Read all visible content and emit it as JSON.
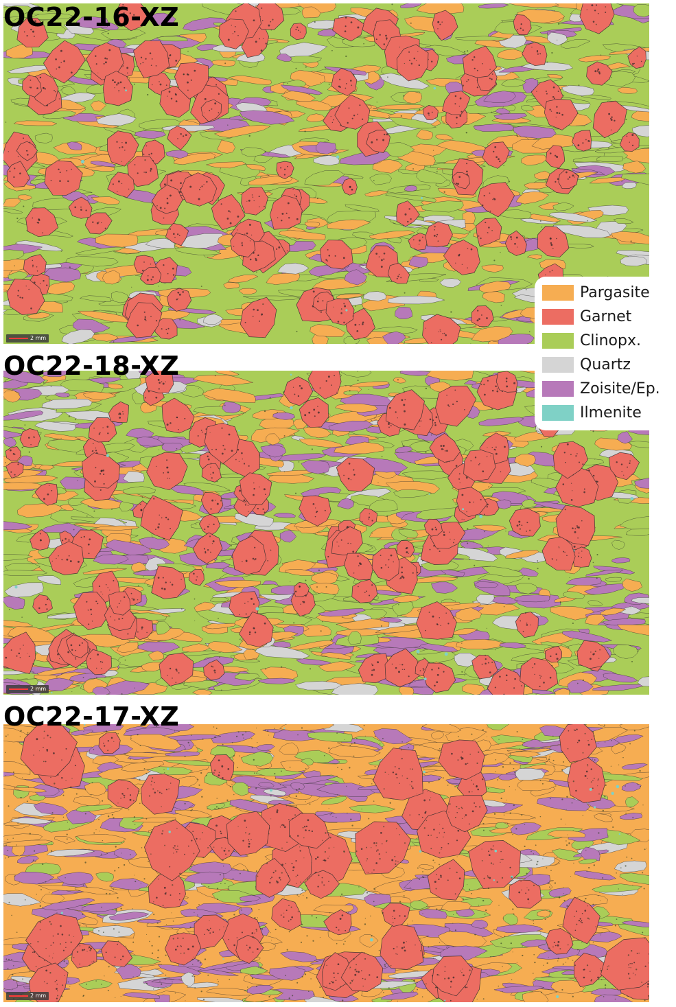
{
  "panels": [
    {
      "title": "OC22-16-XZ",
      "scale_label": "2 mm"
    },
    {
      "title": "OC22-18-XZ",
      "scale_label": "2 mm"
    },
    {
      "title": "OC22-17-XZ",
      "scale_label": "2 mm"
    }
  ],
  "legend": {
    "items": [
      {
        "label": "Pargasite",
        "color": "#f6ad52"
      },
      {
        "label": "Garnet",
        "color": "#ec6d62"
      },
      {
        "label": "Clinopx.",
        "color": "#aacd58"
      },
      {
        "label": "Quartz",
        "color": "#d5d5d5"
      },
      {
        "label": "Zoisite/Ep.",
        "color": "#b779b9"
      },
      {
        "label": "Ilmenite",
        "color": "#7fd1c6"
      }
    ]
  }
}
